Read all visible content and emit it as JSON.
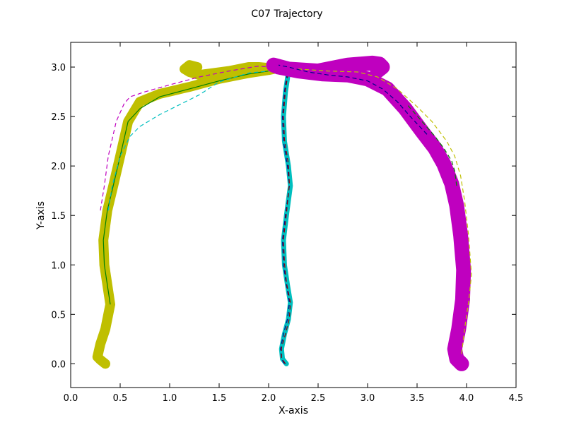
{
  "chart_data": {
    "type": "line",
    "title": "C07 Trajectory",
    "xlabel": "X-axis",
    "ylabel": "Y-axis",
    "xlim": [
      0.0,
      4.5
    ],
    "ylim": [
      -0.24,
      3.25
    ],
    "x_ticks": [
      0.0,
      0.5,
      1.0,
      1.5,
      2.0,
      2.5,
      3.0,
      3.5,
      4.0,
      4.5
    ],
    "y_ticks": [
      0.0,
      0.5,
      1.0,
      1.5,
      2.0,
      2.5,
      3.0
    ],
    "x_tick_labels": [
      "0.0",
      "0.5",
      "1.0",
      "1.5",
      "2.0",
      "2.5",
      "3.0",
      "3.5",
      "4.0",
      "4.5"
    ],
    "y_tick_labels": [
      "0.0",
      "0.5",
      "1.0",
      "1.5",
      "2.0",
      "2.5",
      "3.0"
    ],
    "grid": false,
    "legend": "none",
    "series": [
      {
        "color": "#bfbf00",
        "band_width": 4,
        "x": [
          0.35,
          0.3,
          0.27,
          0.3,
          0.35,
          0.4,
          0.37,
          0.34,
          0.33,
          0.37,
          0.43,
          0.5,
          0.58,
          0.7,
          0.9,
          1.2,
          1.5,
          1.8,
          2.0,
          2.05,
          2.0,
          1.9,
          1.8,
          1.6,
          1.3,
          1.2,
          1.15,
          1.2,
          1.28
        ],
        "y": [
          0.0,
          0.04,
          0.07,
          0.2,
          0.35,
          0.6,
          0.8,
          1.0,
          1.25,
          1.55,
          1.8,
          2.1,
          2.45,
          2.65,
          2.73,
          2.8,
          2.88,
          2.94,
          2.97,
          2.98,
          2.99,
          3.0,
          3.0,
          2.96,
          2.92,
          2.95,
          2.98,
          3.02,
          3.0
        ],
        "central": {
          "color": "#008000",
          "dash": "solid",
          "x": [
            0.4,
            0.37,
            0.34,
            0.33,
            0.37,
            0.43,
            0.5,
            0.58,
            0.7,
            0.9,
            1.2,
            1.5,
            1.8,
            2.0
          ],
          "y": [
            0.6,
            0.8,
            1.0,
            1.25,
            1.55,
            1.8,
            2.1,
            2.45,
            2.58,
            2.7,
            2.78,
            2.86,
            2.93,
            2.96
          ]
        },
        "envelope": {
          "color": "#00bfbf",
          "dash": "dashed",
          "x": [
            0.38,
            0.42,
            0.5,
            0.6,
            0.7,
            0.9,
            1.1,
            1.3,
            1.5,
            1.8,
            2.0
          ],
          "y": [
            1.55,
            1.8,
            2.1,
            2.3,
            2.4,
            2.52,
            2.62,
            2.72,
            2.85,
            2.94,
            2.96
          ]
        },
        "alt_envelope": {
          "color": "#bf00bf",
          "dash": "dashed",
          "x": [
            0.3,
            0.34,
            0.38,
            0.46,
            0.54,
            0.6,
            0.75,
            1.0,
            1.3,
            1.6,
            1.9,
            2.0
          ],
          "y": [
            1.55,
            1.8,
            2.1,
            2.45,
            2.63,
            2.7,
            2.75,
            2.82,
            2.9,
            2.96,
            3.01,
            3.0
          ]
        }
      },
      {
        "color": "#00bfbf",
        "band_width": 2,
        "x": [
          2.18,
          2.14,
          2.13,
          2.16,
          2.2,
          2.22,
          2.19,
          2.16,
          2.15,
          2.18,
          2.22,
          2.2,
          2.16,
          2.15,
          2.17,
          2.2,
          2.2
        ],
        "y": [
          0.0,
          0.05,
          0.15,
          0.3,
          0.45,
          0.62,
          0.8,
          1.0,
          1.25,
          1.5,
          1.8,
          2.0,
          2.25,
          2.5,
          2.75,
          2.95,
          3.02
        ],
        "central": {
          "color": "#00008b",
          "dash": "dashed",
          "x": [
            2.16,
            2.13,
            2.12,
            2.15,
            2.19,
            2.21,
            2.18,
            2.15,
            2.14,
            2.17,
            2.21,
            2.19,
            2.15,
            2.14,
            2.16,
            2.19,
            2.19
          ],
          "y": [
            0.0,
            0.05,
            0.15,
            0.3,
            0.45,
            0.62,
            0.8,
            1.0,
            1.25,
            1.5,
            1.8,
            2.0,
            2.25,
            2.5,
            2.75,
            2.95,
            3.02
          ]
        },
        "envelope": {
          "color": "#8b0000",
          "dash": "dashed",
          "x": [
            2.17,
            2.13,
            2.13,
            2.17,
            2.21,
            2.22,
            2.18,
            2.16,
            2.15,
            2.18,
            2.21,
            2.2,
            2.16,
            2.15,
            2.17,
            2.2
          ],
          "y": [
            0.0,
            0.06,
            0.16,
            0.3,
            0.46,
            0.62,
            0.82,
            1.02,
            1.26,
            1.52,
            1.82,
            2.02,
            2.27,
            2.52,
            2.77,
            2.96
          ]
        }
      },
      {
        "color": "#bf00bf",
        "band_width": 6,
        "x": [
          3.95,
          3.9,
          3.88,
          3.92,
          3.96,
          3.97,
          3.94,
          3.9,
          3.85,
          3.77,
          3.68,
          3.55,
          3.38,
          3.2,
          3.0,
          2.8,
          2.55,
          2.3,
          2.1,
          2.05,
          2.2,
          2.5,
          2.8,
          3.05,
          3.12,
          3.15,
          3.1
        ],
        "y": [
          0.0,
          0.05,
          0.15,
          0.35,
          0.65,
          0.95,
          1.3,
          1.6,
          1.82,
          2.02,
          2.18,
          2.35,
          2.58,
          2.78,
          2.88,
          2.92,
          2.93,
          2.96,
          3.0,
          3.02,
          2.98,
          2.96,
          3.02,
          3.04,
          3.03,
          3.0,
          2.96
        ],
        "central": {
          "color": "#008000",
          "dash": "dashed",
          "x": [
            3.9,
            3.88,
            3.85,
            3.77,
            3.68,
            3.55,
            3.4
          ],
          "y": [
            1.8,
            1.95,
            2.05,
            2.18,
            2.3,
            2.45,
            2.62
          ]
        },
        "envelope": {
          "color": "#bfbf00",
          "dash": "dashed",
          "x": [
            3.95,
            3.98,
            4.02,
            4.05,
            4.02,
            3.98,
            3.94,
            3.88,
            3.8,
            3.65,
            3.5,
            3.3,
            3.1,
            2.9,
            2.6,
            2.3
          ],
          "y": [
            0.1,
            0.35,
            0.62,
            0.9,
            1.3,
            1.65,
            1.9,
            2.1,
            2.25,
            2.45,
            2.6,
            2.78,
            2.9,
            2.95,
            2.96,
            2.98
          ]
        },
        "alt_envelope": {
          "color": "#00008b",
          "dash": "dashed",
          "x": [
            3.6,
            3.45,
            3.3,
            3.15,
            3.0,
            2.8,
            2.6,
            2.4,
            2.2,
            2.1
          ],
          "y": [
            2.32,
            2.48,
            2.65,
            2.78,
            2.86,
            2.9,
            2.92,
            2.95,
            3.0,
            3.02
          ]
        }
      }
    ]
  }
}
